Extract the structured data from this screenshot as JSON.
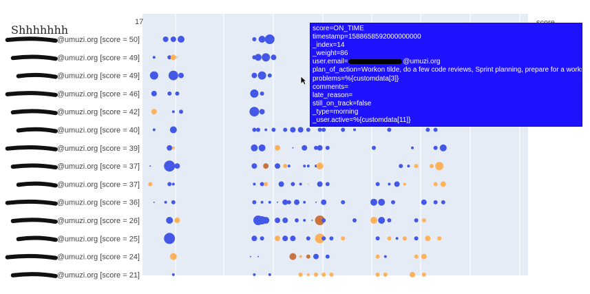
{
  "chart_data": {
    "type": "scatter",
    "title": "Shhhhhhh",
    "top_tick": "17",
    "legend_title": "score",
    "colors": {
      "on_time": "#4458e8",
      "late": "#fdb15a",
      "late_dark": "#c7743f",
      "plot_bg": "#e5ecf6"
    },
    "rows": [
      {
        "label": "@umuzi.org [score = 50]"
      },
      {
        "label": "@umuzi.org [score = 49]"
      },
      {
        "label": "@umuzi.org [score = 49]"
      },
      {
        "label": "@umuzi.org [score = 46]"
      },
      {
        "label": "@umuzi.org [score = 42]"
      },
      {
        "label": "@umuzi.org [score = 40]"
      },
      {
        "label": "@umuzi.org [score = 39]"
      },
      {
        "label": "@umuzi.org [score = 37]"
      },
      {
        "label": "@umuzi.org [score = 37]"
      },
      {
        "label": "@umuzi.org [score = 36]"
      },
      {
        "label": "@umuzi.org [score = 26]"
      },
      {
        "label": "@umuzi.org [score = 25]"
      },
      {
        "label": "@umuzi.org [score = 24]"
      },
      {
        "label": "@umuzi.org [score = 21]"
      }
    ],
    "points": [
      [
        0,
        0.06,
        4,
        "on_time"
      ],
      [
        0,
        0.08,
        4,
        "on_time"
      ],
      [
        0,
        0.1,
        5,
        "on_time"
      ],
      [
        0,
        0.29,
        3,
        "on_time"
      ],
      [
        0,
        0.31,
        5,
        "on_time"
      ],
      [
        0,
        0.33,
        7,
        "on_time"
      ],
      [
        1,
        0.03,
        2,
        "on_time"
      ],
      [
        1,
        0.07,
        3,
        "on_time"
      ],
      [
        1,
        0.08,
        4,
        "late"
      ],
      [
        1,
        0.09,
        1,
        "late"
      ],
      [
        1,
        0.29,
        3,
        "on_time"
      ],
      [
        1,
        0.3,
        5,
        "on_time"
      ],
      [
        1,
        0.32,
        6,
        "on_time"
      ],
      [
        1,
        0.34,
        4,
        "on_time"
      ],
      [
        2,
        0.03,
        6,
        "on_time"
      ],
      [
        2,
        0.08,
        7,
        "on_time"
      ],
      [
        2,
        0.1,
        4,
        "on_time"
      ],
      [
        2,
        0.29,
        4,
        "on_time"
      ],
      [
        2,
        0.31,
        6,
        "on_time"
      ],
      [
        2,
        0.33,
        3,
        "on_time"
      ],
      [
        3,
        0.03,
        4,
        "on_time"
      ],
      [
        3,
        0.07,
        3,
        "on_time"
      ],
      [
        3,
        0.09,
        3,
        "on_time"
      ],
      [
        3,
        0.29,
        6,
        "on_time"
      ],
      [
        3,
        0.31,
        3,
        "on_time"
      ],
      [
        4,
        0.03,
        4,
        "late"
      ],
      [
        4,
        0.08,
        2,
        "on_time"
      ],
      [
        4,
        0.1,
        3,
        "on_time"
      ],
      [
        4,
        0.29,
        7,
        "on_time"
      ],
      [
        4,
        0.31,
        4,
        "on_time"
      ],
      [
        5,
        0.03,
        2,
        "on_time"
      ],
      [
        5,
        0.08,
        5,
        "on_time"
      ],
      [
        5,
        0.29,
        3,
        "on_time"
      ],
      [
        5,
        0.3,
        3,
        "on_time"
      ],
      [
        5,
        0.32,
        2,
        "on_time"
      ],
      [
        5,
        0.34,
        3,
        "on_time"
      ],
      [
        5,
        0.37,
        3,
        "on_time"
      ],
      [
        5,
        0.39,
        4,
        "on_time"
      ],
      [
        5,
        0.41,
        4,
        "on_time"
      ],
      [
        5,
        0.43,
        3,
        "on_time"
      ],
      [
        5,
        0.46,
        3,
        "on_time"
      ],
      [
        5,
        0.47,
        3,
        "on_time"
      ],
      [
        5,
        0.52,
        3,
        "on_time"
      ],
      [
        5,
        0.55,
        2,
        "on_time"
      ],
      [
        5,
        0.64,
        3,
        "on_time"
      ],
      [
        5,
        0.74,
        3,
        "on_time"
      ],
      [
        5,
        0.76,
        3,
        "on_time"
      ],
      [
        6,
        0.07,
        4,
        "on_time"
      ],
      [
        6,
        0.08,
        2,
        "late"
      ],
      [
        6,
        0.29,
        5,
        "on_time"
      ],
      [
        6,
        0.31,
        5,
        "on_time"
      ],
      [
        6,
        0.35,
        4,
        "late"
      ],
      [
        6,
        0.39,
        1,
        "on_time"
      ],
      [
        6,
        0.42,
        4,
        "on_time"
      ],
      [
        6,
        0.45,
        3,
        "on_time"
      ],
      [
        6,
        0.46,
        4,
        "on_time"
      ],
      [
        6,
        0.48,
        3,
        "on_time"
      ],
      [
        6,
        0.6,
        3,
        "on_time"
      ],
      [
        6,
        0.7,
        2,
        "on_time"
      ],
      [
        6,
        0.76,
        3,
        "on_time"
      ],
      [
        6,
        0.78,
        5,
        "on_time"
      ],
      [
        7,
        0.02,
        1,
        "on_time"
      ],
      [
        7,
        0.07,
        8,
        "on_time"
      ],
      [
        7,
        0.09,
        4,
        "on_time"
      ],
      [
        7,
        0.29,
        4,
        "on_time"
      ],
      [
        7,
        0.32,
        4,
        "late_dark"
      ],
      [
        7,
        0.35,
        4,
        "on_time"
      ],
      [
        7,
        0.37,
        3,
        "late"
      ],
      [
        7,
        0.38,
        2,
        "on_time"
      ],
      [
        7,
        0.42,
        2,
        "on_time"
      ],
      [
        7,
        0.43,
        2,
        "on_time"
      ],
      [
        7,
        0.45,
        2,
        "on_time"
      ],
      [
        7,
        0.46,
        5,
        "late"
      ],
      [
        7,
        0.67,
        3,
        "on_time"
      ],
      [
        7,
        0.69,
        2,
        "on_time"
      ],
      [
        7,
        0.71,
        3,
        "late"
      ],
      [
        7,
        0.75,
        3,
        "late"
      ],
      [
        7,
        0.77,
        6,
        "late"
      ],
      [
        8,
        0.02,
        3,
        "late"
      ],
      [
        8,
        0.07,
        3,
        "on_time"
      ],
      [
        8,
        0.08,
        2,
        "on_time"
      ],
      [
        8,
        0.29,
        2,
        "on_time"
      ],
      [
        8,
        0.31,
        3,
        "on_time"
      ],
      [
        8,
        0.32,
        3,
        "late"
      ],
      [
        8,
        0.36,
        4,
        "on_time"
      ],
      [
        8,
        0.39,
        3,
        "on_time"
      ],
      [
        8,
        0.41,
        2,
        "on_time"
      ],
      [
        8,
        0.43,
        1,
        "late"
      ],
      [
        8,
        0.46,
        4,
        "on_time"
      ],
      [
        8,
        0.48,
        3,
        "on_time"
      ],
      [
        8,
        0.61,
        3,
        "on_time"
      ],
      [
        8,
        0.64,
        2,
        "on_time"
      ],
      [
        8,
        0.66,
        4,
        "on_time"
      ],
      [
        8,
        0.68,
        2,
        "late"
      ],
      [
        8,
        0.76,
        3,
        "late"
      ],
      [
        8,
        0.78,
        4,
        "late"
      ],
      [
        9,
        0.03,
        1,
        "on_time"
      ],
      [
        9,
        0.06,
        2,
        "on_time"
      ],
      [
        9,
        0.08,
        3,
        "on_time"
      ],
      [
        9,
        0.29,
        3,
        "on_time"
      ],
      [
        9,
        0.31,
        2,
        "on_time"
      ],
      [
        9,
        0.33,
        2,
        "on_time"
      ],
      [
        9,
        0.35,
        1,
        "on_time"
      ],
      [
        9,
        0.37,
        4,
        "on_time"
      ],
      [
        9,
        0.38,
        3,
        "on_time"
      ],
      [
        9,
        0.4,
        4,
        "on_time"
      ],
      [
        9,
        0.42,
        2,
        "on_time"
      ],
      [
        9,
        0.45,
        1,
        "on_time"
      ],
      [
        9,
        0.47,
        4,
        "on_time"
      ],
      [
        9,
        0.52,
        3,
        "on_time"
      ],
      [
        9,
        0.6,
        5,
        "on_time"
      ],
      [
        9,
        0.62,
        5,
        "on_time"
      ],
      [
        9,
        0.65,
        3,
        "on_time"
      ],
      [
        9,
        0.73,
        4,
        "on_time"
      ],
      [
        9,
        0.76,
        3,
        "on_time"
      ],
      [
        9,
        0.78,
        3,
        "on_time"
      ],
      [
        10,
        0.07,
        5,
        "on_time"
      ],
      [
        10,
        0.09,
        4,
        "late"
      ],
      [
        10,
        0.3,
        7,
        "on_time"
      ],
      [
        10,
        0.31,
        6,
        "on_time"
      ],
      [
        10,
        0.32,
        5,
        "on_time"
      ],
      [
        10,
        0.35,
        4,
        "on_time"
      ],
      [
        10,
        0.37,
        4,
        "on_time"
      ],
      [
        10,
        0.4,
        3,
        "on_time"
      ],
      [
        10,
        0.42,
        2,
        "on_time"
      ],
      [
        10,
        0.44,
        1,
        "on_time"
      ],
      [
        10,
        0.46,
        7,
        "late_dark"
      ],
      [
        10,
        0.47,
        3,
        "on_time"
      ],
      [
        10,
        0.55,
        3,
        "on_time"
      ],
      [
        10,
        0.6,
        5,
        "late"
      ],
      [
        10,
        0.62,
        5,
        "on_time"
      ],
      [
        10,
        0.64,
        3,
        "on_time"
      ],
      [
        10,
        0.71,
        3,
        "on_time"
      ],
      [
        10,
        0.73,
        3,
        "late"
      ],
      [
        11,
        0.07,
        8,
        "on_time"
      ],
      [
        11,
        0.29,
        4,
        "on_time"
      ],
      [
        11,
        0.31,
        3,
        "on_time"
      ],
      [
        11,
        0.35,
        4,
        "late"
      ],
      [
        11,
        0.37,
        4,
        "on_time"
      ],
      [
        11,
        0.39,
        4,
        "on_time"
      ],
      [
        11,
        0.43,
        3,
        "on_time"
      ],
      [
        11,
        0.46,
        7,
        "late"
      ],
      [
        11,
        0.47,
        3,
        "on_time"
      ],
      [
        11,
        0.49,
        3,
        "on_time"
      ],
      [
        11,
        0.52,
        3,
        "late"
      ],
      [
        11,
        0.61,
        3,
        "on_time"
      ],
      [
        11,
        0.64,
        3,
        "late"
      ],
      [
        11,
        0.66,
        2,
        "on_time"
      ],
      [
        11,
        0.68,
        3,
        "late"
      ],
      [
        11,
        0.71,
        3,
        "on_time"
      ],
      [
        11,
        0.74,
        4,
        "late"
      ],
      [
        11,
        0.77,
        3,
        "late"
      ],
      [
        12,
        0.08,
        5,
        "late"
      ],
      [
        12,
        0.28,
        1,
        "on_time"
      ],
      [
        12,
        0.3,
        1,
        "on_time"
      ],
      [
        12,
        0.39,
        5,
        "late_dark"
      ],
      [
        12,
        0.41,
        2,
        "late"
      ],
      [
        12,
        0.43,
        3,
        "late_dark"
      ],
      [
        12,
        0.45,
        4,
        "on_time"
      ],
      [
        12,
        0.48,
        3,
        "on_time"
      ],
      [
        12,
        0.61,
        3,
        "late"
      ],
      [
        12,
        0.63,
        2,
        "on_time"
      ],
      [
        12,
        0.71,
        3,
        "late"
      ],
      [
        12,
        0.73,
        4,
        "late"
      ],
      [
        13,
        0.08,
        2,
        "on_time"
      ],
      [
        13,
        0.29,
        2,
        "on_time"
      ],
      [
        13,
        0.33,
        2,
        "on_time"
      ],
      [
        13,
        0.41,
        3,
        "late"
      ],
      [
        13,
        0.43,
        2,
        "late"
      ],
      [
        13,
        0.45,
        3,
        "late"
      ],
      [
        13,
        0.47,
        3,
        "late"
      ],
      [
        13,
        0.49,
        3,
        "late"
      ],
      [
        13,
        0.61,
        3,
        "late"
      ],
      [
        13,
        0.63,
        3,
        "late"
      ],
      [
        13,
        0.7,
        4,
        "late"
      ],
      [
        13,
        0.73,
        3,
        "late"
      ]
    ]
  },
  "tooltip": {
    "lines": [
      "score=ON_TIME",
      "timestamp=1588658592000000000",
      "_index=14",
      "_weight=86",
      "user.email=",
      "plan_of_action=Workon tilde, do a few code reviews, Sprint planning, prepare for a workshop",
      "problems=%{customdata[3]}",
      "comments=",
      "late_reason=",
      "still_on_track=false",
      "_type=morning",
      "_user.active=%{customdata[11]}"
    ],
    "email_domain": "@umuzi.org"
  }
}
